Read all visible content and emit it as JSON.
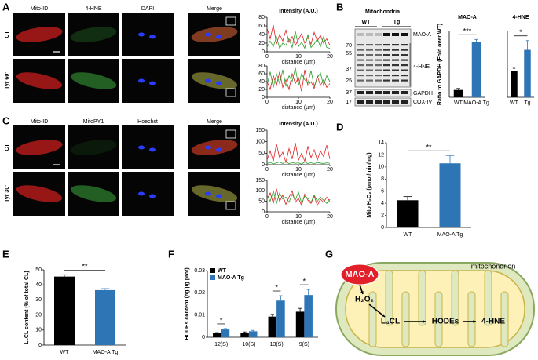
{
  "panel_labels": [
    "A",
    "B",
    "C",
    "D",
    "E",
    "F",
    "G"
  ],
  "panel_a": {
    "channels": [
      "Mito-ID",
      "4-HNE",
      "DAPI",
      "Merge"
    ],
    "rows": [
      "CT",
      "Tyr 60'"
    ]
  },
  "panel_b": {
    "header": "Mitochondria",
    "lanes": [
      "WT",
      "Tg"
    ],
    "markers": [
      70,
      55,
      37,
      25,
      37,
      17
    ],
    "bands": [
      "MAO-A",
      "4-HNE",
      "GAPDH",
      "COX-IV"
    ]
  },
  "panel_c": {
    "channels": [
      "Mito-ID",
      "MitoPY1",
      "Hoechst",
      "Merge"
    ],
    "rows": [
      "CT",
      "Tyr 30'"
    ]
  },
  "panel_g": {
    "title": "mitochondrion",
    "enzyme": "MAO-A",
    "nodes": [
      "H₂O₂",
      "L₄CL",
      "HODEs",
      "4-HNE"
    ]
  },
  "chart_data": [
    {
      "type": "line",
      "title": "Intensity (A.U.)",
      "xlabel": "distance (µm)",
      "x": [
        0,
        1,
        2,
        3,
        4,
        5,
        6,
        7,
        8,
        9,
        10,
        11,
        12,
        13,
        14,
        15,
        16,
        17,
        18,
        19,
        20
      ],
      "xlim": [
        0,
        20
      ],
      "xticks": [
        0,
        10,
        20
      ],
      "ylim": [
        0,
        80
      ],
      "yticks": [
        0,
        20,
        40,
        60,
        80
      ],
      "series": [
        {
          "color": "#e02020",
          "values": [
            55,
            30,
            62,
            18,
            40,
            25,
            50,
            22,
            35,
            15,
            28,
            42,
            20,
            33,
            18,
            45,
            25,
            38,
            20,
            30,
            15
          ]
        },
        {
          "color": "#2ca02c",
          "values": [
            10,
            25,
            12,
            35,
            8,
            20,
            15,
            30,
            10,
            48,
            12,
            22,
            8,
            40,
            10,
            18,
            30,
            12,
            35,
            10,
            8
          ]
        }
      ]
    },
    {
      "type": "line",
      "xlabel": "distance (µm)",
      "x": [
        0,
        1,
        2,
        3,
        4,
        5,
        6,
        7,
        8,
        9,
        10,
        11,
        12,
        13,
        14,
        15,
        16,
        17,
        18,
        19,
        20
      ],
      "xlim": [
        0,
        20
      ],
      "xticks": [
        0,
        10,
        20
      ],
      "ylim": [
        0,
        80
      ],
      "yticks": [
        0,
        20,
        40,
        60,
        80
      ],
      "series": [
        {
          "color": "#e02020",
          "values": [
            40,
            20,
            55,
            30,
            65,
            25,
            45,
            20,
            60,
            35,
            50,
            15,
            70,
            30,
            40,
            22,
            55,
            30,
            45,
            25,
            35
          ]
        },
        {
          "color": "#2ca02c",
          "values": [
            30,
            65,
            25,
            60,
            35,
            70,
            28,
            55,
            40,
            75,
            30,
            60,
            45,
            35,
            68,
            28,
            50,
            62,
            30,
            55,
            40
          ]
        }
      ]
    },
    {
      "type": "line",
      "title": "Intensity (A.U.)",
      "xlabel": "distance (µm)",
      "x": [
        0,
        1,
        2,
        3,
        4,
        5,
        6,
        7,
        8,
        9,
        10,
        11,
        12,
        13,
        14,
        15,
        16,
        17,
        18,
        19,
        20
      ],
      "xlim": [
        0,
        20
      ],
      "xticks": [
        0,
        10,
        20
      ],
      "ylim": [
        0,
        150
      ],
      "yticks": [
        0,
        50,
        100,
        150
      ],
      "series": [
        {
          "color": "#e02020",
          "values": [
            20,
            60,
            15,
            90,
            30,
            55,
            10,
            70,
            25,
            95,
            20,
            50,
            15,
            80,
            30,
            65,
            20,
            60,
            35,
            85,
            25
          ]
        },
        {
          "color": "#2ca02c",
          "values": [
            5,
            10,
            3,
            8,
            12,
            5,
            15,
            4,
            10,
            6,
            8,
            3,
            12,
            5,
            9,
            4,
            10,
            7,
            5,
            8,
            6
          ]
        }
      ]
    },
    {
      "type": "line",
      "xlabel": "distance (µm)",
      "x": [
        0,
        1,
        2,
        3,
        4,
        5,
        6,
        7,
        8,
        9,
        10,
        11,
        12,
        13,
        14,
        15,
        16,
        17,
        18,
        19,
        20
      ],
      "xlim": [
        0,
        20
      ],
      "xticks": [
        0,
        10,
        20
      ],
      "ylim": [
        0,
        150
      ],
      "yticks": [
        0,
        50,
        100,
        150
      ],
      "series": [
        {
          "color": "#e02020",
          "values": [
            60,
            90,
            40,
            110,
            50,
            80,
            35,
            70,
            100,
            45,
            65,
            30,
            85,
            55,
            40,
            75,
            30,
            60,
            45,
            70,
            50
          ]
        },
        {
          "color": "#2ca02c",
          "values": [
            80,
            50,
            100,
            40,
            90,
            60,
            70,
            45,
            85,
            55,
            95,
            40,
            75,
            65,
            45,
            80,
            50,
            70,
            55,
            40,
            60
          ]
        }
      ]
    },
    {
      "type": "bar",
      "title": "MAO-A",
      "ylabel": "Ratio to GAPDH (Fold over WT)",
      "categories": [
        "WT",
        "MAO-A Tg"
      ],
      "values": [
        1,
        7.5
      ],
      "errors": [
        0.2,
        0.4
      ],
      "colors": [
        "#000000",
        "#2e75b6"
      ],
      "ylim": [
        0,
        9
      ],
      "significance": "***"
    },
    {
      "type": "bar",
      "title": "4-HNE",
      "categories": [
        "WT",
        "Tg"
      ],
      "values": [
        1,
        1.8
      ],
      "errors": [
        0.1,
        0.35
      ],
      "colors": [
        "#000000",
        "#2e75b6"
      ],
      "ylim": [
        0,
        2.5
      ],
      "significance": "*"
    },
    {
      "type": "bar",
      "ylabel": "Mito H₂O₂ (pmol/min/mg)",
      "categories": [
        "WT",
        "MAO-A Tg"
      ],
      "values": [
        4.5,
        10.6
      ],
      "errors": [
        0.6,
        1.3
      ],
      "colors": [
        "#000000",
        "#2e75b6"
      ],
      "ylim": [
        0,
        14
      ],
      "yticks": [
        0,
        2,
        4,
        6,
        8,
        10,
        12,
        14
      ],
      "significance": "**"
    },
    {
      "type": "bar",
      "ylabel": "L₄CL content (% of total CL)",
      "categories": [
        "WT",
        "MAO-A Tg"
      ],
      "values": [
        45.5,
        36.5
      ],
      "errors": [
        1.2,
        1
      ],
      "colors": [
        "#000000",
        "#2e75b6"
      ],
      "ylim": [
        0,
        50
      ],
      "yticks": [
        0,
        10,
        20,
        30,
        40,
        50
      ],
      "significance": "**"
    },
    {
      "type": "bar",
      "ylabel": "HODEs content (ng/µg prot)",
      "categories": [
        "12(S)",
        "10(S)",
        "13(S)",
        "9(S)"
      ],
      "series": [
        {
          "name": "WT",
          "color": "#000000",
          "values": [
            0.0018,
            0.0021,
            0.0093,
            0.0115
          ],
          "errors": [
            0.0003,
            0.0003,
            0.001,
            0.0015
          ]
        },
        {
          "name": "MAO-A Tg",
          "color": "#2e75b6",
          "values": [
            0.0035,
            0.0027,
            0.0165,
            0.019
          ],
          "errors": [
            0.0004,
            0.0004,
            0.0022,
            0.0025
          ]
        }
      ],
      "ylim": [
        0,
        0.03
      ],
      "yticks": [
        0,
        0.01,
        0.02,
        0.03
      ],
      "significance": [
        "*",
        null,
        "*",
        "*"
      ],
      "legend": "top-left"
    }
  ]
}
